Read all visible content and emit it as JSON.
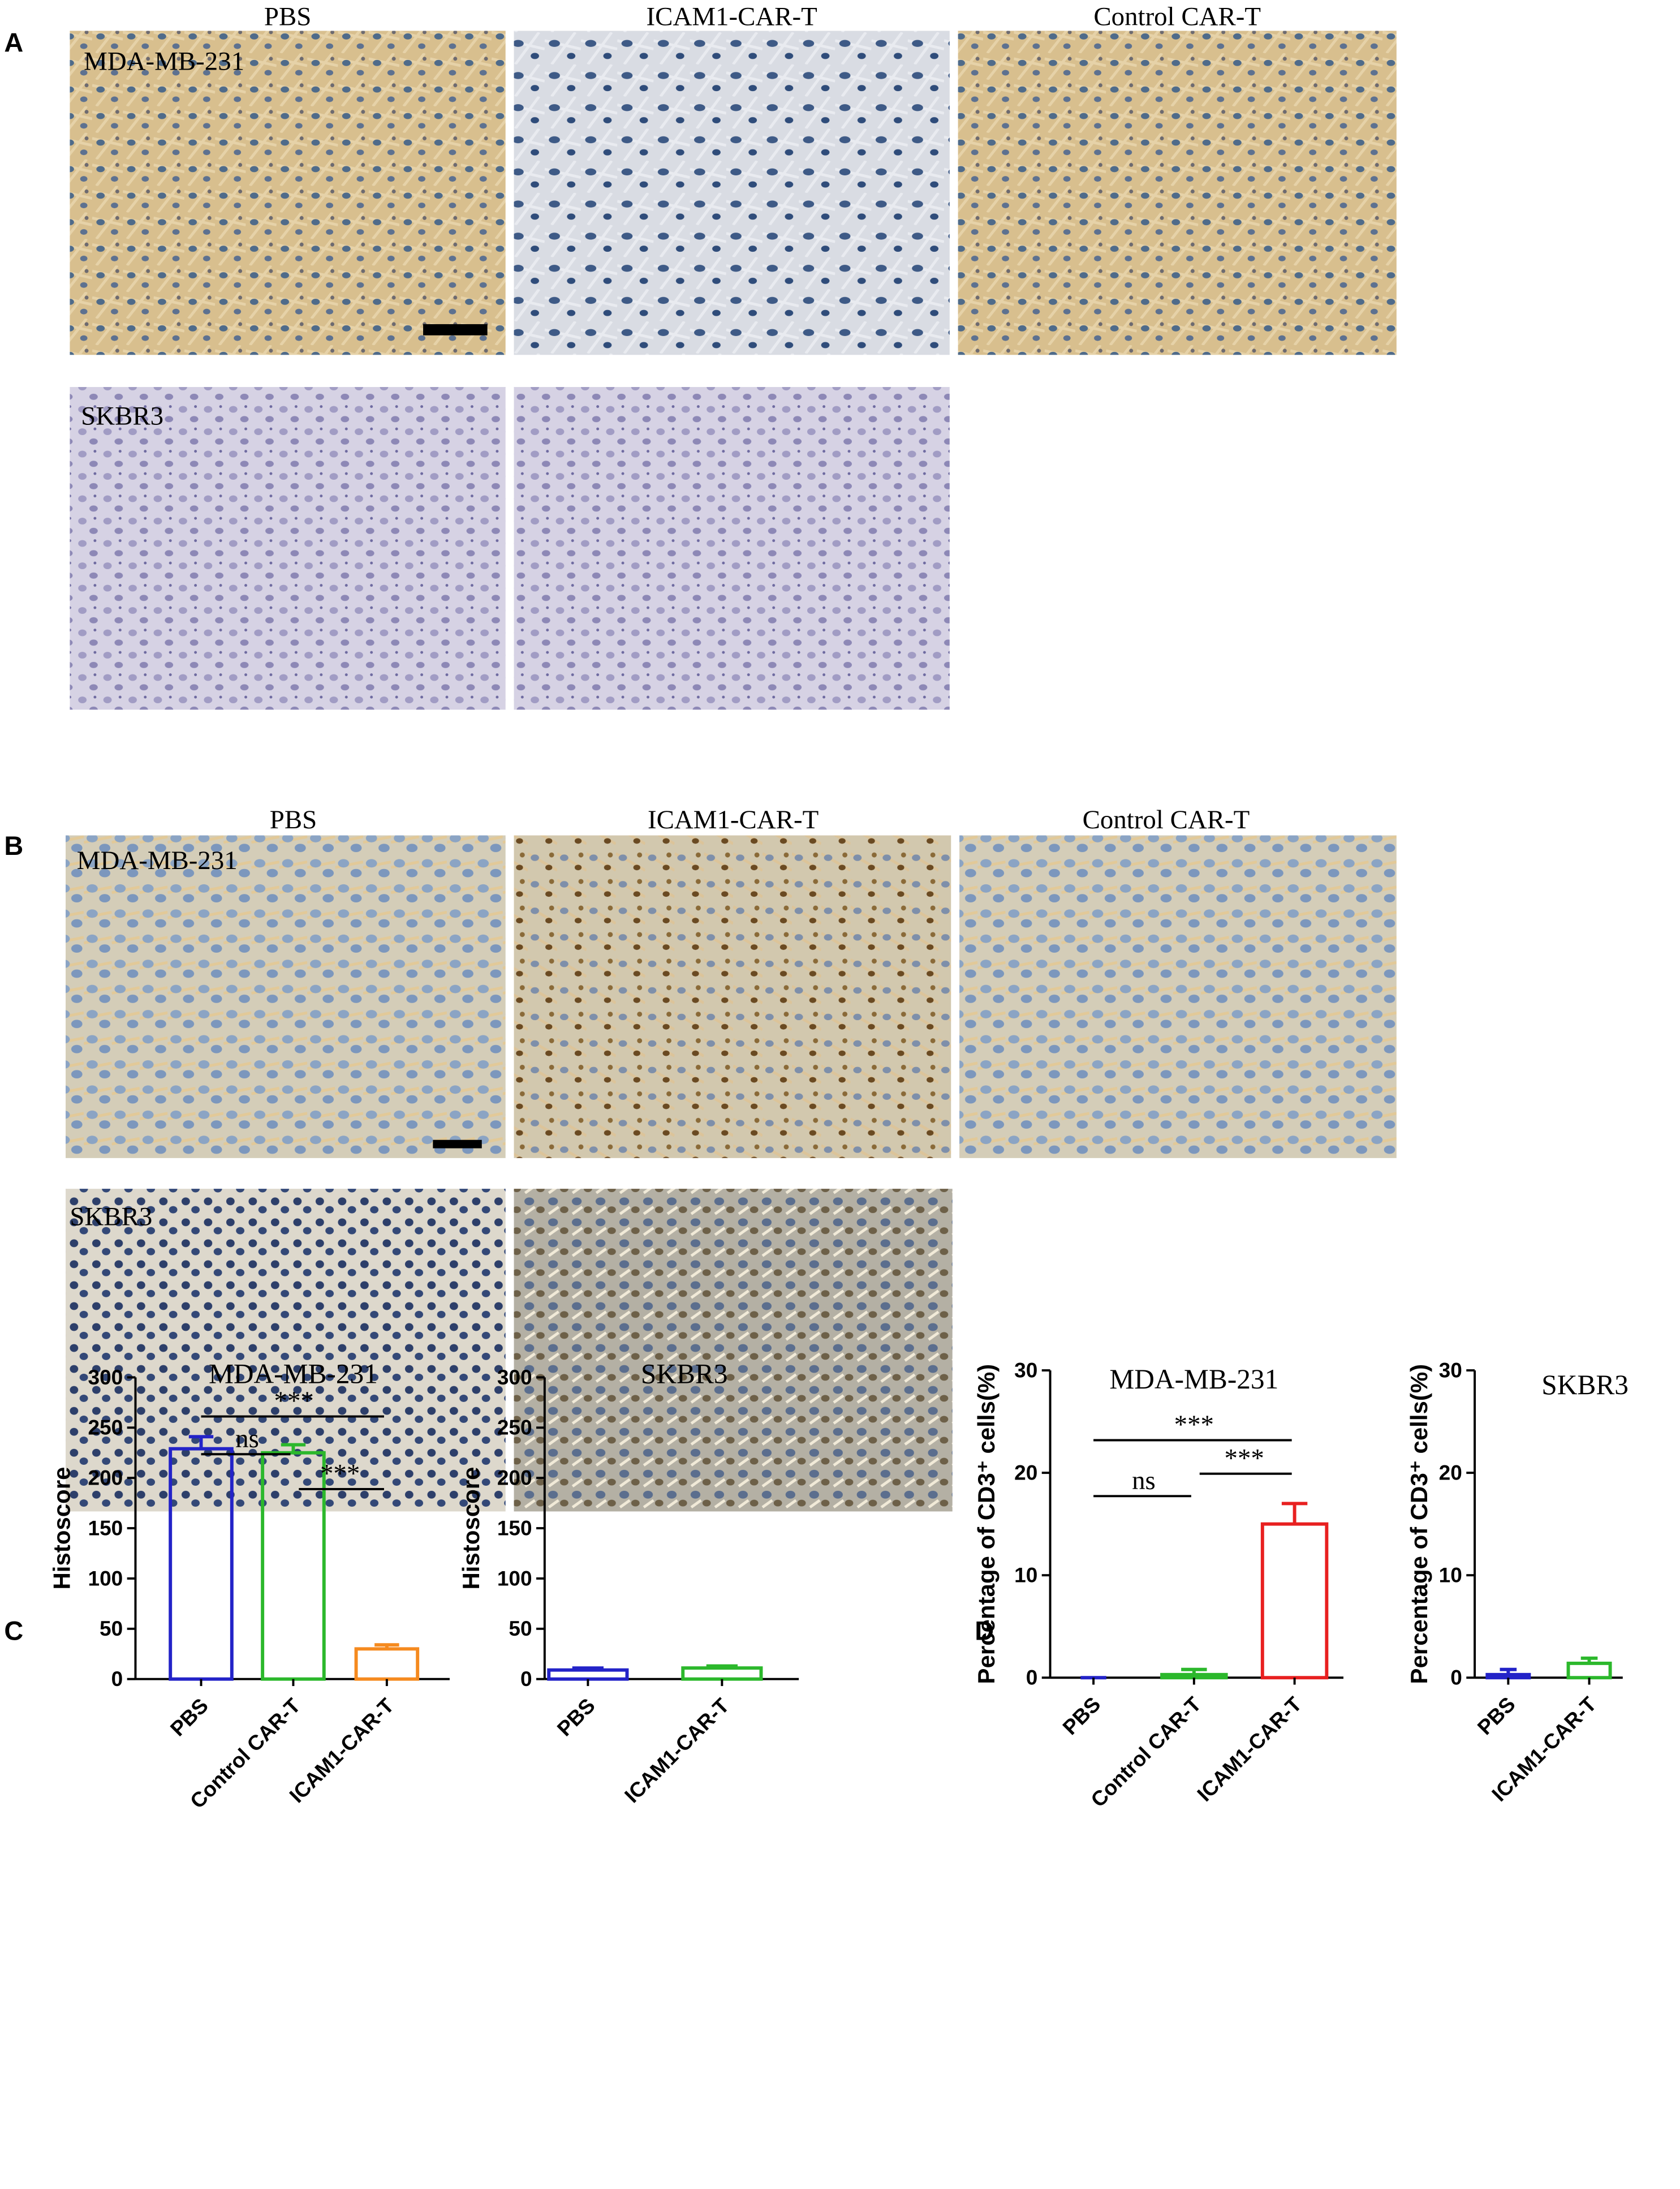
{
  "panel_a": {
    "label": "A",
    "columns": [
      "PBS",
      "ICAM1-CAR-T",
      "Control CAR-T"
    ],
    "rows": [
      "MDA-MB-231",
      "SKBR3"
    ]
  },
  "panel_b": {
    "label": "B",
    "columns": [
      "PBS",
      "ICAM1-CAR-T",
      "Control CAR-T"
    ],
    "rows": [
      "MDA-MB-231",
      "SKBR3"
    ]
  },
  "panel_c": {
    "label": "C"
  },
  "panel_d": {
    "label": "D"
  },
  "chart_data": [
    {
      "type": "bar",
      "title": "MDA-MB-231",
      "y_label": "Histoscore",
      "categories": [
        "PBS",
        "Control CAR-T",
        "ICAM1-CAR-T"
      ],
      "values": [
        229,
        225,
        30
      ],
      "errors": [
        12,
        8,
        4
      ],
      "colors": [
        "#2323c8",
        "#2cb82c",
        "#f58a1f"
      ],
      "ylim": [
        0,
        300
      ],
      "yticks": [
        0,
        50,
        100,
        150,
        200,
        250,
        300
      ],
      "significance": [
        {
          "between": [
            0,
            2
          ],
          "label": "***"
        },
        {
          "between": [
            0,
            1
          ],
          "label": "ns"
        },
        {
          "between": [
            1,
            2
          ],
          "label": "***"
        }
      ]
    },
    {
      "type": "bar",
      "title": "SKBR3",
      "y_label": "Histoscore",
      "categories": [
        "PBS",
        "ICAM1-CAR-T"
      ],
      "values": [
        9,
        11
      ],
      "errors": [
        2,
        2
      ],
      "colors": [
        "#2323c8",
        "#2cb82c"
      ],
      "ylim": [
        0,
        300
      ],
      "yticks": [
        0,
        50,
        100,
        150,
        200,
        250,
        300
      ]
    },
    {
      "type": "bar",
      "title": "MDA-MB-231",
      "y_label": "Percentage of CD3⁺ cells(%)",
      "categories": [
        "PBS",
        "Control CAR-T",
        "ICAM1-CAR-T"
      ],
      "values": [
        0,
        0.3,
        15
      ],
      "errors": [
        0,
        0.5,
        2
      ],
      "colors": [
        "#2323c8",
        "#2cb82c",
        "#e82020"
      ],
      "ylim": [
        0,
        30
      ],
      "yticks": [
        0,
        10,
        20,
        30
      ],
      "significance": [
        {
          "between": [
            0,
            2
          ],
          "label": "***"
        },
        {
          "between": [
            0,
            1
          ],
          "label": "ns"
        },
        {
          "between": [
            1,
            2
          ],
          "label": "***"
        }
      ]
    },
    {
      "type": "bar",
      "title": "SKBR3",
      "y_label": "Percentage of CD3⁺ cells(%)",
      "categories": [
        "PBS",
        "ICAM1-CAR-T"
      ],
      "values": [
        0.3,
        1.4
      ],
      "errors": [
        0.5,
        0.5
      ],
      "colors": [
        "#2323c8",
        "#2cb82c"
      ],
      "ylim": [
        0,
        30
      ],
      "yticks": [
        0,
        10,
        20,
        30
      ]
    }
  ]
}
